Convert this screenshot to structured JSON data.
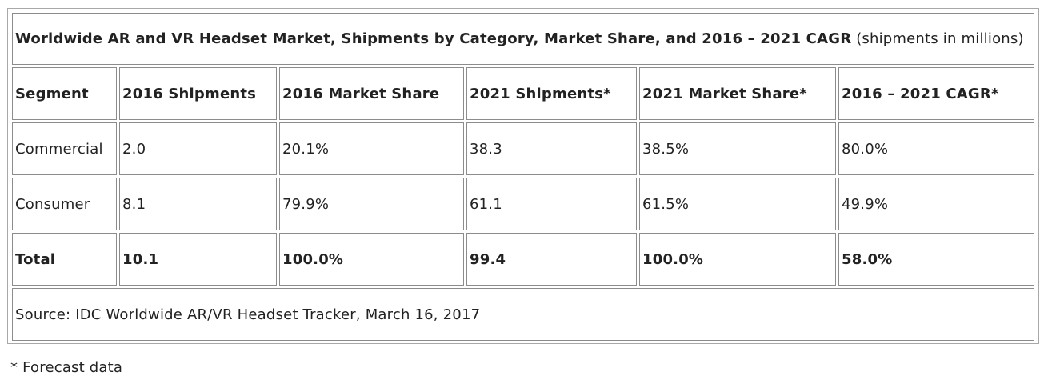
{
  "table": {
    "title": "Worldwide AR and VR Headset Market, Shipments by Category, Market Share, and 2016 – 2021 CAGR",
    "title_note": "(shipments in millions)",
    "headers": [
      "Segment",
      "2016 Shipments",
      "2016 Market Share",
      "2021 Shipments*",
      "2021 Market Share*",
      "2016 – 2021 CAGR*"
    ],
    "rows": [
      [
        "Commercial",
        "2.0",
        "20.1%",
        "38.3",
        "38.5%",
        "80.0%"
      ],
      [
        "Consumer",
        "8.1",
        "79.9%",
        "61.1",
        "61.5%",
        "49.9%"
      ]
    ],
    "total": [
      "Total",
      "10.1",
      "100.0%",
      "99.4",
      "100.0%",
      "58.0%"
    ],
    "source": "Source: IDC Worldwide AR/VR Headset Tracker, March 16, 2017"
  },
  "footnote": "* Forecast data"
}
